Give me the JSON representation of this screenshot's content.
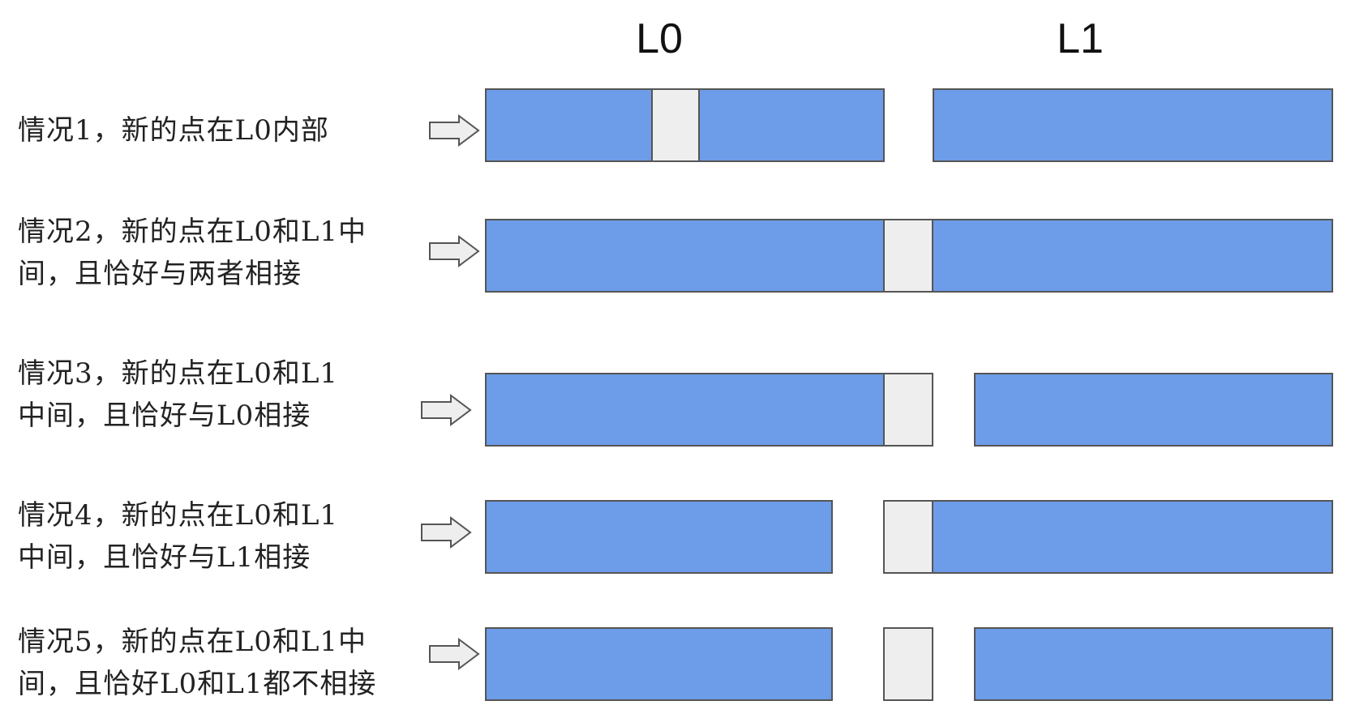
{
  "headers": {
    "l0": "L0",
    "l1": "L1"
  },
  "cases": [
    {
      "label": "情况1，新的点在L0内部"
    },
    {
      "label": "情况2，新的点在L0和L1中\n间，且恰好与两者相接"
    },
    {
      "label": "情况3，新的点在L0和L1\n中间，且恰好与L0相接"
    },
    {
      "label": "情况4，新的点在L0和L1\n中间，且恰好与L1相接"
    },
    {
      "label": "情况5，新的点在L0和L1中\n间，且恰好L0和L1都不相接"
    }
  ],
  "colors": {
    "interval": "#6d9ce8",
    "new_point": "#eeeeee",
    "border": "#555555",
    "arrow_fill": "#eeeeee"
  },
  "icons": {
    "arrow": "right-arrow-icon"
  }
}
